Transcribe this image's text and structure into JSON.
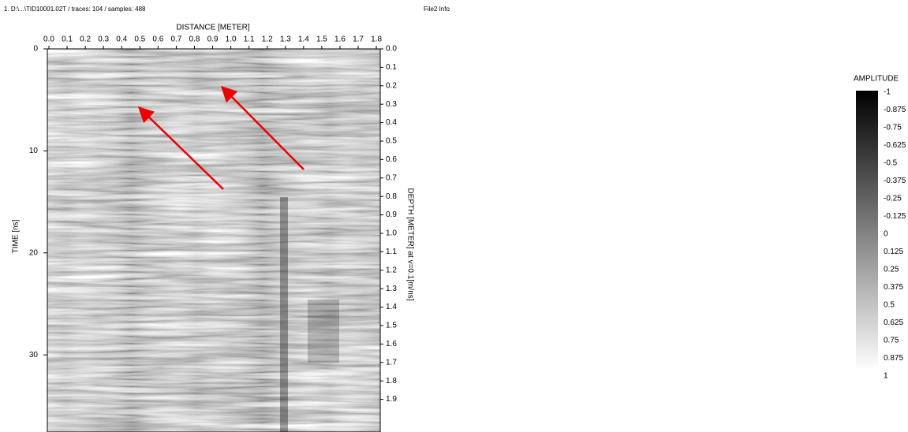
{
  "header": {
    "file_info": "1. D:\\...\\TID10001.02T / traces: 104 / samples: 488",
    "panel_title": "File2 Info"
  },
  "radargram": {
    "x_axis_title": "DISTANCE [METER]",
    "x_ticks": [
      "0.0",
      "0.1",
      "0.2",
      "0.3",
      "0.4",
      "0.5",
      "0.6",
      "0.7",
      "0.8",
      "0.9",
      "1.0",
      "1.1",
      "1.2",
      "1.3",
      "1.4",
      "1.5",
      "1.6",
      "1.7",
      "1.8"
    ],
    "left_axis_title": "TIME [ns]",
    "left_ticks": [
      "0",
      "10",
      "20",
      "30"
    ],
    "right_axis_title": "DEPTH [METER] at v=0.1[m/ns]",
    "right_ticks": [
      "0.0",
      "0.1",
      "0.2",
      "0.3",
      "0.4",
      "0.5",
      "0.6",
      "0.7",
      "0.8",
      "0.9",
      "1.0",
      "1.1",
      "1.2",
      "1.3",
      "1.4",
      "1.5",
      "1.6",
      "1.7",
      "1.8",
      "1.9"
    ]
  },
  "colorbar": {
    "title": "AMPLITUDE",
    "ticks": [
      "-1",
      "-0.875",
      "-0.75",
      "-0.625",
      "-0.5",
      "-0.375",
      "-0.25",
      "-0.125",
      "0",
      "0.125",
      "0.25",
      "0.375",
      "0.5",
      "0.625",
      "0.75",
      "0.875",
      "1"
    ]
  }
}
